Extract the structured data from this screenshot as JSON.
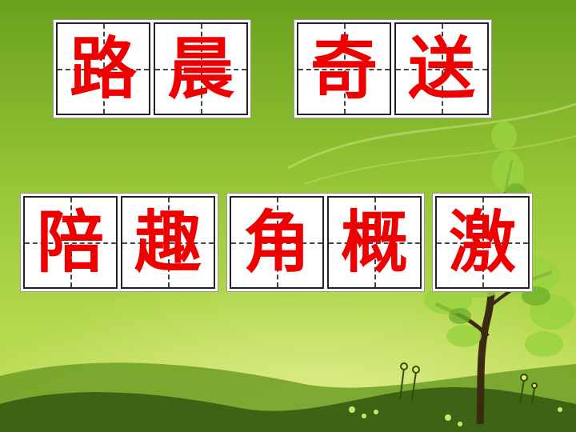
{
  "background": {
    "sky_top": "#6aa11c",
    "sky_mid": "#9dcc3a",
    "sky_bottom": "#c3de5a",
    "hill_dark": "#3d6314",
    "hill_light": "#5b8e1f",
    "tree_leaf": "#9ad33f",
    "char_color": "#ee0000"
  },
  "cards": [
    {
      "chars": [
        "路",
        "晨"
      ]
    },
    {
      "chars": [
        "奇",
        "送"
      ]
    },
    {
      "chars": [
        "陪",
        "趣"
      ]
    },
    {
      "chars": [
        "角",
        "概"
      ]
    },
    {
      "chars": [
        "激"
      ]
    }
  ]
}
